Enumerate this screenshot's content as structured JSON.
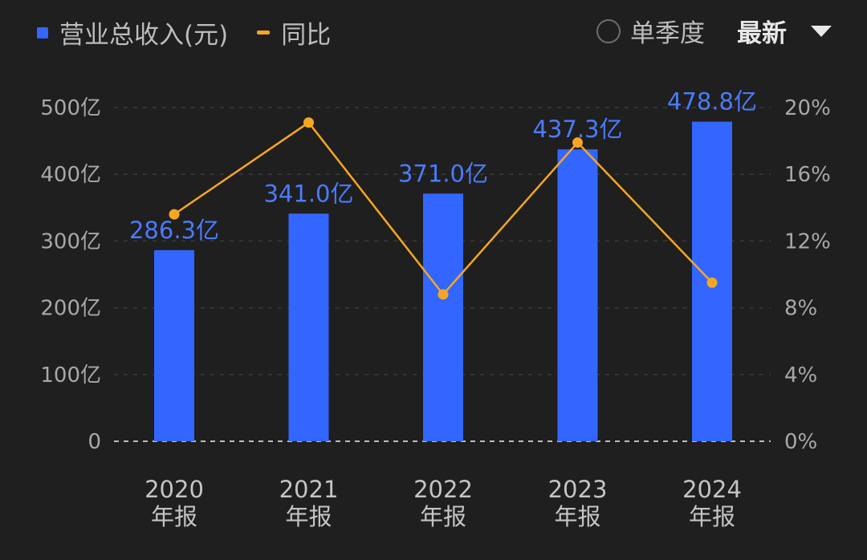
{
  "legend": {
    "bar_label": "营业总收入(元)",
    "line_label": "同比"
  },
  "controls": {
    "quarter_label": "单季度",
    "dropdown_label": "最新"
  },
  "colors": {
    "bar": "#3366ff",
    "line": "#f5a623",
    "data_label": "#4a7bff",
    "background": "#1f1f1f"
  },
  "chart_data": {
    "type": "bar",
    "categories": [
      [
        "2020",
        "年报"
      ],
      [
        "2021",
        "年报"
      ],
      [
        "2022",
        "年报"
      ],
      [
        "2023",
        "年报"
      ],
      [
        "2024",
        "年报"
      ]
    ],
    "series": [
      {
        "name": "营业总收入(元)",
        "type": "bar",
        "axis": "left",
        "values": [
          286.3,
          341.0,
          371.0,
          437.3,
          478.8
        ],
        "labels": [
          "286.3亿",
          "341.0亿",
          "371.0亿",
          "437.3亿",
          "478.8亿"
        ]
      },
      {
        "name": "同比",
        "type": "line",
        "axis": "right",
        "values": [
          13.6,
          19.1,
          8.8,
          17.9,
          9.5
        ]
      }
    ],
    "y_left": {
      "ylim": [
        0,
        500
      ],
      "ticks": [
        0,
        100,
        200,
        300,
        400,
        500
      ],
      "tick_labels": [
        "0",
        "100亿",
        "200亿",
        "300亿",
        "400亿",
        "500亿"
      ]
    },
    "y_right": {
      "ylim": [
        0,
        20
      ],
      "ticks": [
        0,
        4,
        8,
        12,
        16,
        20
      ],
      "tick_labels": [
        "0%",
        "4%",
        "8%",
        "12%",
        "16%",
        "20%"
      ]
    },
    "grid": true,
    "legend_position": "top-left"
  }
}
